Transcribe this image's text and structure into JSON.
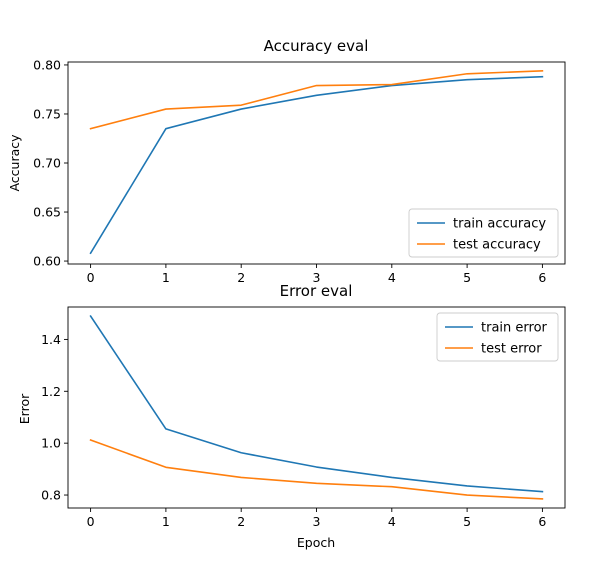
{
  "chart_data": [
    {
      "type": "line",
      "title": "Accuracy eval",
      "xlabel": "",
      "ylabel": "Accuracy",
      "x": [
        0,
        1,
        2,
        3,
        4,
        5,
        6
      ],
      "xlim": [
        -0.3,
        6.3
      ],
      "ylim": [
        0.597,
        0.803
      ],
      "yticks": [
        0.6,
        0.65,
        0.7,
        0.75,
        0.8
      ],
      "ytick_labels": [
        "0.60",
        "0.65",
        "0.70",
        "0.75",
        "0.80"
      ],
      "xticks": [
        0,
        1,
        2,
        3,
        4,
        5,
        6
      ],
      "xtick_labels": [
        "0",
        "1",
        "2",
        "3",
        "4",
        "5",
        "6"
      ],
      "legend_position": "lower-right",
      "grid": false,
      "series": [
        {
          "name": "train accuracy",
          "color": "#1f77b4",
          "values": [
            0.608,
            0.735,
            0.755,
            0.769,
            0.779,
            0.785,
            0.788
          ]
        },
        {
          "name": "test accuracy",
          "color": "#ff7f0e",
          "values": [
            0.735,
            0.755,
            0.759,
            0.779,
            0.78,
            0.791,
            0.794
          ]
        }
      ]
    },
    {
      "type": "line",
      "title": "Error eval",
      "xlabel": "Epoch",
      "ylabel": "Error",
      "x": [
        0,
        1,
        2,
        3,
        4,
        5,
        6
      ],
      "xlim": [
        -0.3,
        6.3
      ],
      "ylim": [
        0.75,
        1.525
      ],
      "yticks": [
        0.8,
        1.0,
        1.2,
        1.4
      ],
      "ytick_labels": [
        "0.8",
        "1.0",
        "1.2",
        "1.4"
      ],
      "xticks": [
        0,
        1,
        2,
        3,
        4,
        5,
        6
      ],
      "xtick_labels": [
        "0",
        "1",
        "2",
        "3",
        "4",
        "5",
        "6"
      ],
      "legend_position": "upper-right",
      "grid": false,
      "series": [
        {
          "name": "train error",
          "color": "#1f77b4",
          "values": [
            1.49,
            1.055,
            0.963,
            0.908,
            0.868,
            0.835,
            0.813
          ]
        },
        {
          "name": "test error",
          "color": "#ff7f0e",
          "values": [
            1.012,
            0.907,
            0.868,
            0.845,
            0.832,
            0.8,
            0.785
          ]
        }
      ]
    }
  ]
}
